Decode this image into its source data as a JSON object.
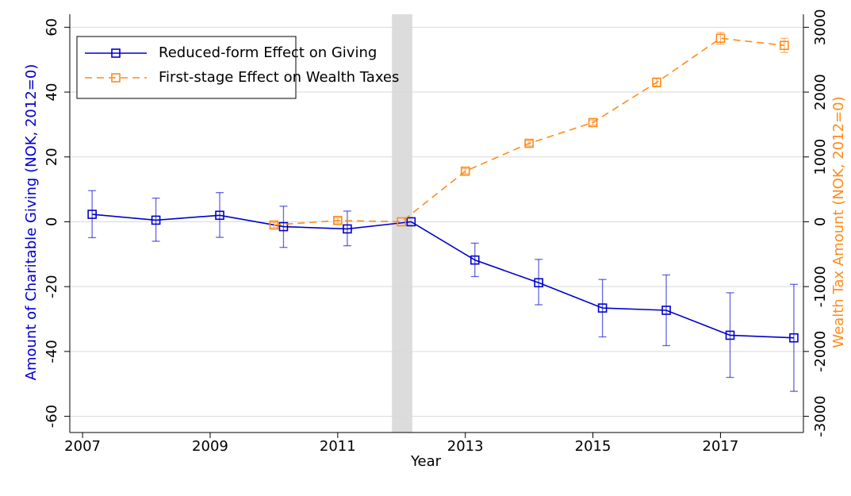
{
  "chart_data": {
    "type": "line",
    "xlabel": "Year",
    "ylabel": "Amount of Charitable Giving (NOK, 2012=0)",
    "y2label": "Wealth Tax Amount (NOK, 2012=0)",
    "xlim": [
      2006.8,
      2018.3
    ],
    "xticks": [
      2007,
      2009,
      2011,
      2013,
      2015,
      2017
    ],
    "ylim": [
      -65,
      64
    ],
    "yticks": [
      -60,
      -40,
      -20,
      0,
      20,
      40,
      60
    ],
    "y2lim": [
      -3250,
      3200
    ],
    "y2ticks": [
      -3000,
      -2000,
      -1000,
      0,
      1000,
      2000,
      3000
    ],
    "grid": true,
    "legend": "upper-left",
    "highlight_x": [
      2011.85,
      2012.17
    ],
    "series": [
      {
        "name": "Reduced-form Effect on Giving",
        "color": "#0000cc",
        "dash": false,
        "axis": "y",
        "x": [
          2007.15,
          2008.15,
          2009.15,
          2010.15,
          2011.15,
          2012.15,
          2013.15,
          2014.15,
          2015.15,
          2016.15,
          2017.15,
          2018.15
        ],
        "values": [
          2.3,
          0.5,
          2.0,
          -1.5,
          -2.2,
          0,
          -11.8,
          -18.8,
          -26.6,
          -27.3,
          -35.0,
          -35.8
        ],
        "ci_low": [
          -4.9,
          -6.0,
          -4.8,
          -7.9,
          -7.4,
          null,
          -16.9,
          -25.6,
          -35.5,
          -38.2,
          -48.0,
          -52.3
        ],
        "ci_high": [
          9.6,
          7.3,
          9.0,
          4.8,
          3.3,
          null,
          -6.6,
          -11.6,
          -17.8,
          -16.4,
          -21.9,
          -19.3
        ]
      },
      {
        "name": "First-stage Effect on Wealth Taxes",
        "color": "#ff8c1a",
        "dash": true,
        "axis": "y2",
        "x": [
          2010,
          2011,
          2012,
          2013,
          2014,
          2015,
          2016,
          2017,
          2018
        ],
        "values": [
          -50,
          20,
          0,
          780,
          1210,
          1530,
          2150,
          2830,
          2720
        ],
        "ci_low": [
          -90,
          -20,
          null,
          740,
          1170,
          1490,
          2080,
          2740,
          2610
        ],
        "ci_high": [
          -10,
          60,
          null,
          820,
          1250,
          1570,
          2220,
          2920,
          2830
        ]
      }
    ]
  }
}
